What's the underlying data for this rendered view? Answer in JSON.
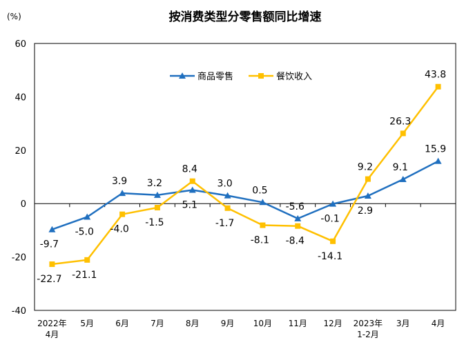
{
  "chart_data": {
    "type": "line",
    "title": "按消费类型分零售额同比增速",
    "ylabel": "(%)",
    "xlabel": "",
    "ylim": [
      -40,
      60
    ],
    "yticks": [
      -40,
      -20,
      0,
      20,
      40,
      60
    ],
    "grid": false,
    "legend_position": "top-center",
    "categories": [
      [
        "2022年",
        "4月"
      ],
      [
        "5月"
      ],
      [
        "6月"
      ],
      [
        "7月"
      ],
      [
        "8月"
      ],
      [
        "9月"
      ],
      [
        "10月"
      ],
      [
        "11月"
      ],
      [
        "12月"
      ],
      [
        "2023年",
        "1-2月"
      ],
      [
        "3月"
      ],
      [
        "4月"
      ]
    ],
    "series": [
      {
        "name": "商品零售",
        "color": "#1f6fbf",
        "marker": "triangle",
        "values": [
          -9.7,
          -5.0,
          3.9,
          3.2,
          5.1,
          3.0,
          0.5,
          -5.6,
          -0.1,
          2.9,
          9.1,
          15.9
        ],
        "labels": [
          "-9.7",
          "-5.0",
          "3.9",
          "3.2",
          "5.1",
          "3.0",
          "0.5",
          "-5.6",
          "-0.1",
          "2.9",
          "9.1",
          "15.9"
        ]
      },
      {
        "name": "餐饮收入",
        "color": "#ffc000",
        "marker": "square",
        "values": [
          -22.7,
          -21.1,
          -4.0,
          -1.5,
          8.4,
          -1.7,
          -8.1,
          -8.4,
          -14.1,
          9.2,
          26.3,
          43.8
        ],
        "labels": [
          "-22.7",
          "-21.1",
          "-4.0",
          "-1.5",
          "8.4",
          "-1.7",
          "-8.1",
          "-8.4",
          "-14.1",
          "9.2",
          "26.3",
          "43.8"
        ]
      }
    ]
  }
}
